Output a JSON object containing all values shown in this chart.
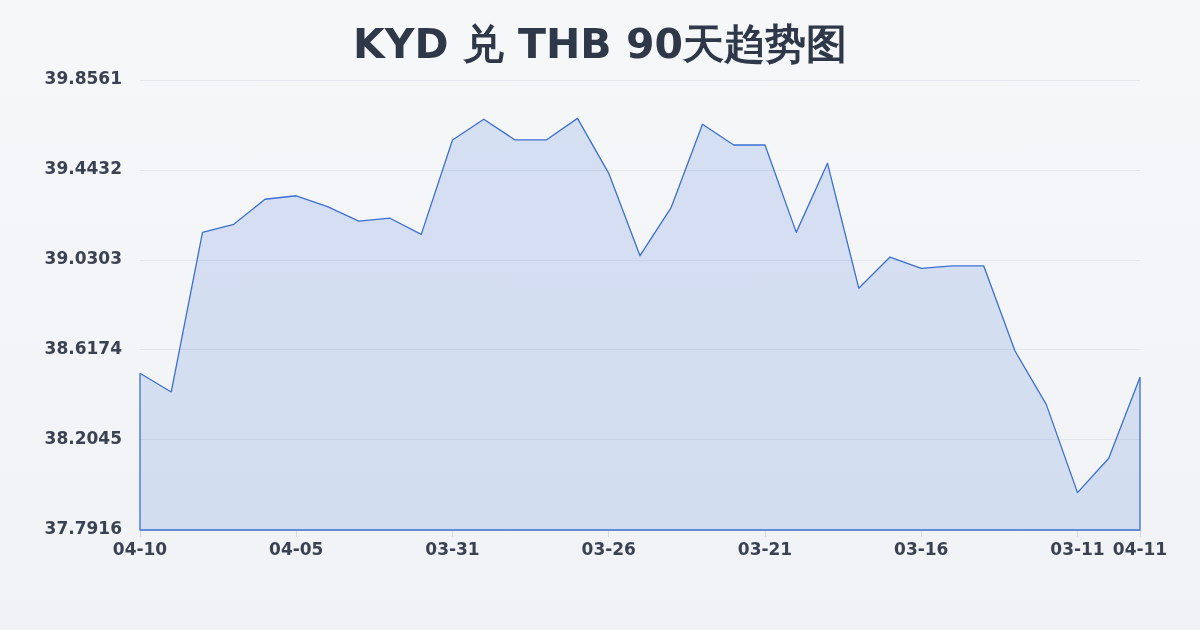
{
  "chart_data": {
    "type": "area",
    "title": "KYD 兑 THB 90天趋势图",
    "categories": [
      "04-10",
      null,
      null,
      null,
      null,
      "04-05",
      null,
      null,
      null,
      null,
      "03-31",
      null,
      null,
      null,
      null,
      "03-26",
      null,
      null,
      null,
      null,
      "03-21",
      null,
      null,
      null,
      null,
      "03-16",
      null,
      null,
      null,
      null,
      "03-11",
      null,
      "04-11"
    ],
    "series": [
      {
        "color": "#3b6fd4",
        "values": [
          38.511,
          38.425,
          39.157,
          39.194,
          39.309,
          39.325,
          39.275,
          39.209,
          39.222,
          39.148,
          39.581,
          39.676,
          39.581,
          39.581,
          39.68,
          39.428,
          39.05,
          39.272,
          39.653,
          39.558,
          39.558,
          39.157,
          39.474,
          38.901,
          39.044,
          38.992,
          39.003,
          39.003,
          38.613,
          38.368,
          37.963,
          38.121,
          38.492
        ]
      }
    ],
    "ylim": [
      37.7916,
      39.8561
    ],
    "yticks": [
      37.7916,
      38.2045,
      38.6174,
      39.0303,
      39.4432,
      39.8561
    ],
    "grid": "y",
    "marker": "none"
  }
}
